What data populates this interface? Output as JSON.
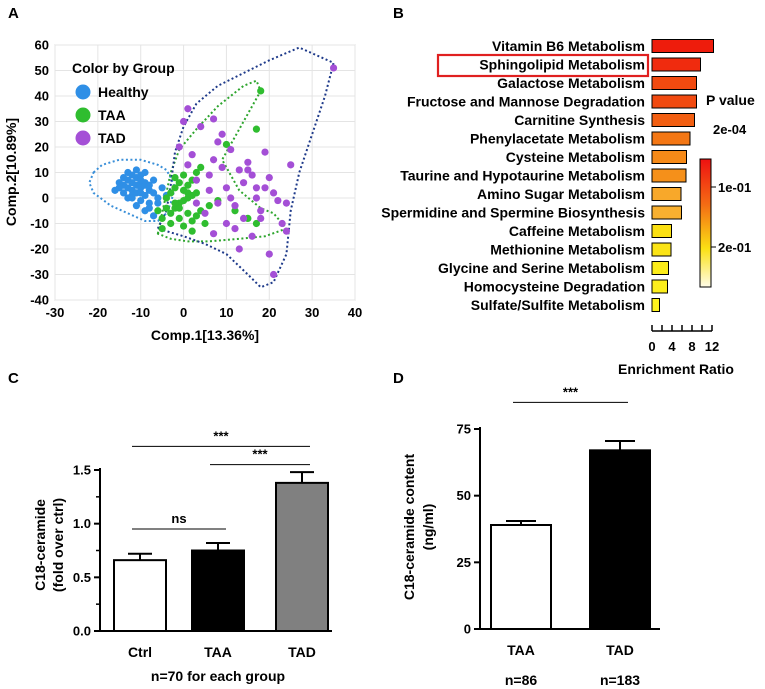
{
  "figure": {
    "panels": [
      "A",
      "B",
      "C",
      "D"
    ]
  },
  "colors": {
    "healthy": "#2f8fe6",
    "taa": "#2fbd2f",
    "tad": "#a44fd6",
    "hull_healthy": "#3a8fd8",
    "hull_taa": "#2ea52e",
    "hull_tad": "#1e3a8a",
    "highlight_box": "#e02020"
  },
  "chart_data": [
    {
      "id": "A",
      "type": "scatter",
      "xlabel": "Comp.1[13.36%]",
      "ylabel": "Comp.2[10.89%]",
      "xlim": [
        -30,
        40
      ],
      "ylim": [
        -40,
        60
      ],
      "xticks": [
        "-30",
        "-20",
        "-10",
        "0",
        "10",
        "20",
        "30",
        "40"
      ],
      "yticks": [
        "60",
        "50",
        "40",
        "30",
        "20",
        "10",
        "0",
        "-10",
        "-20",
        "-30",
        "-40"
      ],
      "legend_title": "Color by Group",
      "series": [
        {
          "name": "Healthy",
          "points": [
            [
              -14,
              8
            ],
            [
              -13,
              7
            ],
            [
              -12,
              6
            ],
            [
              -11,
              8
            ],
            [
              -10,
              6
            ],
            [
              -9,
              5
            ],
            [
              -12,
              3
            ],
            [
              -11,
              2
            ],
            [
              -10,
              2
            ],
            [
              -9,
              1
            ],
            [
              -8,
              3
            ],
            [
              -13,
              4
            ],
            [
              -14,
              5
            ],
            [
              -11,
              5
            ],
            [
              -10,
              4
            ],
            [
              -12,
              1
            ],
            [
              -9,
              6
            ],
            [
              -8,
              5
            ],
            [
              -7,
              7
            ],
            [
              -10,
              9
            ],
            [
              -9,
              10
            ],
            [
              -11,
              11
            ],
            [
              -13,
              10
            ],
            [
              -15,
              6
            ],
            [
              -16,
              3
            ],
            [
              -12,
              0
            ],
            [
              -10,
              -1
            ],
            [
              -8,
              -2
            ],
            [
              -11,
              -3
            ],
            [
              -9,
              -5
            ],
            [
              -7,
              -7
            ],
            [
              -6,
              0
            ],
            [
              -8,
              -4
            ],
            [
              -7,
              2
            ],
            [
              -5,
              4
            ],
            [
              -4,
              1
            ],
            [
              -6,
              -2
            ],
            [
              -14,
              2
            ],
            [
              -13,
              0
            ],
            [
              -10,
              7
            ],
            [
              -12,
              9
            ],
            [
              -15,
              4
            ]
          ]
        },
        {
          "name": "TAA",
          "points": [
            [
              -5,
              -8
            ],
            [
              -3,
              -6
            ],
            [
              -2,
              -4
            ],
            [
              -1,
              -2
            ],
            [
              0,
              -1
            ],
            [
              1,
              0
            ],
            [
              2,
              1
            ],
            [
              3,
              2
            ],
            [
              -4,
              0
            ],
            [
              -3,
              2
            ],
            [
              -2,
              4
            ],
            [
              0,
              3
            ],
            [
              1,
              5
            ],
            [
              2,
              7
            ],
            [
              -1,
              6
            ],
            [
              -2,
              8
            ],
            [
              0,
              9
            ],
            [
              3,
              10
            ],
            [
              4,
              12
            ],
            [
              -5,
              -12
            ],
            [
              -3,
              -10
            ],
            [
              -1,
              -8
            ],
            [
              1,
              -6
            ],
            [
              2,
              -9
            ],
            [
              4,
              -5
            ],
            [
              6,
              -3
            ],
            [
              -4,
              -4
            ],
            [
              0,
              -11
            ],
            [
              2,
              -13
            ],
            [
              5,
              -10
            ],
            [
              3,
              -7
            ],
            [
              -2,
              -2
            ],
            [
              1,
              2
            ],
            [
              -6,
              -5
            ],
            [
              8,
              -1
            ],
            [
              12,
              -5
            ],
            [
              15,
              -8
            ],
            [
              17,
              -10
            ],
            [
              18,
              42
            ],
            [
              17,
              27
            ],
            [
              10,
              21
            ],
            [
              -1,
              -4
            ]
          ]
        },
        {
          "name": "TAD",
          "points": [
            [
              2,
              17
            ],
            [
              4,
              28
            ],
            [
              6,
              9
            ],
            [
              7,
              15
            ],
            [
              8,
              22
            ],
            [
              9,
              12
            ],
            [
              10,
              4
            ],
            [
              11,
              19
            ],
            [
              12,
              -3
            ],
            [
              13,
              11
            ],
            [
              14,
              6
            ],
            [
              15,
              14
            ],
            [
              16,
              9
            ],
            [
              17,
              0
            ],
            [
              18,
              -5
            ],
            [
              19,
              4
            ],
            [
              20,
              8
            ],
            [
              21,
              2
            ],
            [
              22,
              -1
            ],
            [
              23,
              -10
            ],
            [
              24,
              -13
            ],
            [
              20,
              -22
            ],
            [
              21,
              -30
            ],
            [
              18,
              -8
            ],
            [
              16,
              -15
            ],
            [
              14,
              -8
            ],
            [
              12,
              -12
            ],
            [
              10,
              -10
            ],
            [
              8,
              -2
            ],
            [
              6,
              3
            ],
            [
              5,
              -6
            ],
            [
              3,
              7
            ],
            [
              1,
              13
            ],
            [
              -1,
              20
            ],
            [
              0,
              30
            ],
            [
              1,
              35
            ],
            [
              7,
              31
            ],
            [
              9,
              25
            ],
            [
              15,
              11
            ],
            [
              17,
              4
            ],
            [
              25,
              13
            ],
            [
              35,
              51
            ],
            [
              19,
              18
            ],
            [
              13,
              -20
            ],
            [
              11,
              0
            ],
            [
              3,
              -2
            ],
            [
              24,
              -2
            ],
            [
              7,
              -14
            ]
          ]
        }
      ],
      "hulls": [
        {
          "name": "Healthy",
          "points": [
            [
              -21,
              10
            ],
            [
              -19,
              13
            ],
            [
              -15,
              15
            ],
            [
              -10,
              15
            ],
            [
              -6,
              13
            ],
            [
              -4,
              11
            ],
            [
              -3,
              8
            ],
            [
              -2,
              4
            ],
            [
              -3,
              -2
            ],
            [
              -4,
              -6
            ],
            [
              -6,
              -9
            ],
            [
              -9,
              -9
            ],
            [
              -13,
              -6
            ],
            [
              -17,
              -3
            ],
            [
              -21,
              2
            ],
            [
              -22,
              6
            ]
          ]
        },
        {
          "name": "TAA",
          "points": [
            [
              -6,
              -14
            ],
            [
              -5,
              -6
            ],
            [
              -4,
              2
            ],
            [
              -3,
              10
            ],
            [
              -1,
              19
            ],
            [
              3,
              27
            ],
            [
              8,
              36
            ],
            [
              14,
              44
            ],
            [
              17,
              46
            ],
            [
              18,
              42
            ],
            [
              13,
              27
            ],
            [
              9,
              15
            ],
            [
              13,
              3
            ],
            [
              18,
              -4
            ],
            [
              21,
              -6
            ],
            [
              24,
              -12
            ],
            [
              19,
              -15
            ],
            [
              13,
              -16
            ],
            [
              6,
              -17
            ],
            [
              1,
              -17
            ],
            [
              -3,
              -16
            ]
          ]
        },
        {
          "name": "TAD",
          "points": [
            [
              -6,
              -12
            ],
            [
              -4,
              -5
            ],
            [
              -3,
              5
            ],
            [
              -2,
              18
            ],
            [
              0,
              28
            ],
            [
              3,
              37
            ],
            [
              8,
              44
            ],
            [
              14,
              49
            ],
            [
              20,
              54
            ],
            [
              27,
              59
            ],
            [
              35,
              53
            ],
            [
              33,
              40
            ],
            [
              30,
              25
            ],
            [
              27,
              10
            ],
            [
              25,
              -5
            ],
            [
              24,
              -22
            ],
            [
              21,
              -33
            ],
            [
              18,
              -35
            ],
            [
              15,
              -30
            ],
            [
              10,
              -22
            ],
            [
              5,
              -18
            ],
            [
              0,
              -15
            ]
          ]
        }
      ]
    },
    {
      "id": "B",
      "type": "bar",
      "orientation": "horizontal",
      "xlabel": "Enrichment Ratio",
      "xlim": [
        0,
        12
      ],
      "xticks": [
        "0",
        "4",
        "8",
        "12"
      ],
      "categories": [
        "Vitamin B6 Metabolism",
        "Sphingolipid Metabolism",
        "Galactose Metabolism",
        "Fructose and Mannose Degradation",
        "Carnitine Synthesis",
        "Phenylacetate Metabolism",
        "Cysteine Metabolism",
        "Taurine and Hypotaurine Metabolism",
        "Amino Sugar Metabolism",
        "Spermidine and Spermine Biosynthesis",
        "Caffeine Metabolism",
        "Methionine Metabolism",
        "Glycine and Serine Metabolism",
        "Homocysteine Degradation",
        "Sulfate/Sulfite Metabolism"
      ],
      "values": [
        12.3,
        9.7,
        8.9,
        8.9,
        8.5,
        7.6,
        6.9,
        6.8,
        5.8,
        5.9,
        3.9,
        3.8,
        3.3,
        3.1,
        1.5
      ],
      "bar_colors": [
        "#ee1c0c",
        "#f02b0e",
        "#f14a10",
        "#f14a10",
        "#f25f12",
        "#f47714",
        "#f68a18",
        "#f5901a",
        "#f8a82a",
        "#f8b030",
        "#fbe012",
        "#fbe416",
        "#fcec1a",
        "#fcee1c",
        "#fdf21e"
      ],
      "highlighted_category": "Sphingolipid Metabolism",
      "colorbar": {
        "title": "P value",
        "labels": [
          "2e-04",
          "1e-01",
          "2e-01"
        ]
      }
    },
    {
      "id": "C",
      "type": "bar",
      "ylabel": "C18-ceramide\n(fold over ctrl)",
      "ylabel_lines": [
        "C18-ceramide",
        "(fold over ctrl)"
      ],
      "ylim": [
        0,
        1.5
      ],
      "yticks": [
        "0.0",
        "0.5",
        "1.0",
        "1.5"
      ],
      "categories": [
        "Ctrl",
        "TAA",
        "TAD"
      ],
      "values": [
        0.66,
        0.75,
        1.38
      ],
      "errors": [
        0.06,
        0.07,
        0.1
      ],
      "bar_fills": [
        "#ffffff",
        "#000000",
        "#808080"
      ],
      "footnote": "n=70 for each group",
      "significance": [
        {
          "from": 0,
          "to": 2,
          "label": "***",
          "y": 1.72
        },
        {
          "from": 1,
          "to": 2,
          "label": "***",
          "y": 1.55
        },
        {
          "from": 0,
          "to": 1,
          "label": "ns",
          "y": 0.95
        }
      ]
    },
    {
      "id": "D",
      "type": "bar",
      "ylabel": "C18-ceramide content\n(ng/ml)",
      "ylabel_lines": [
        "C18-ceramide content",
        "(ng/ml)"
      ],
      "ylim": [
        0,
        75
      ],
      "yticks": [
        "0",
        "25",
        "50",
        "75"
      ],
      "categories": [
        "TAA",
        "TAD"
      ],
      "values": [
        39,
        67
      ],
      "errors": [
        1.5,
        3.5
      ],
      "bar_fills": [
        "#ffffff",
        "#000000"
      ],
      "n_labels": [
        "n=86",
        "n=183"
      ],
      "significance": [
        {
          "from": 0,
          "to": 1,
          "label": "***",
          "y": 85
        }
      ]
    }
  ]
}
